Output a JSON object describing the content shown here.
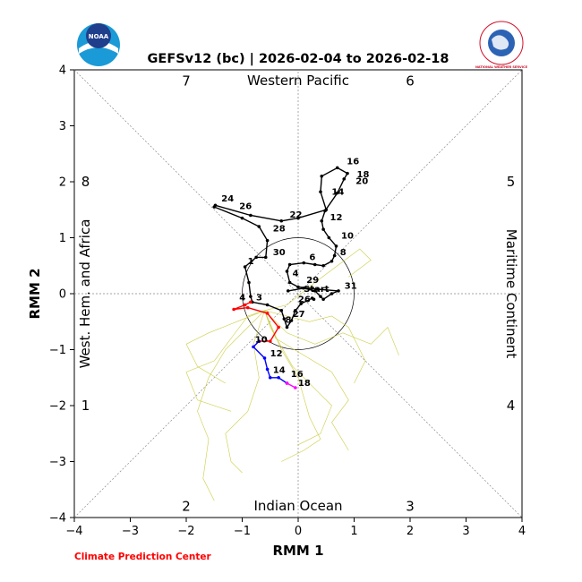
{
  "header": {
    "title": "GEFSv12 (bc) | 2026-02-04 to 2026-02-18"
  },
  "logos": {
    "left_logo_text": "NOAA",
    "right_logo_text": "NATIONAL WEATHER SERVICE"
  },
  "credit": "Climate Prediction Center",
  "colors": {
    "observed": "#000000",
    "forecast_week1": "#ff0000",
    "forecast_week2": "#0000ff",
    "forecast_week3": "#ff00ff",
    "ensemble_members": "#c8c832",
    "grid_diagonal": "#888888"
  },
  "chart_data": {
    "type": "line",
    "title": "GEFSv12 (bc) | 2026-02-04 to 2026-02-18",
    "xlabel": "RMM 1",
    "ylabel": "RMM 2",
    "xlim": [
      -4,
      4
    ],
    "ylim": [
      -4,
      4
    ],
    "xticks": [
      "−4",
      "−3",
      "−2",
      "−1",
      "0",
      "1",
      "2",
      "3",
      "4"
    ],
    "yticks": [
      "−4",
      "−3",
      "−2",
      "−1",
      "0",
      "1",
      "2",
      "3",
      "4"
    ],
    "unit_circle_radius": 1,
    "region_labels": {
      "top": "Western Pacific",
      "bottom": "Indian Ocean",
      "left": "West. Hem. and Africa",
      "right": "Maritime Continent"
    },
    "phase_numbers": [
      "1",
      "2",
      "3",
      "4",
      "5",
      "6",
      "7",
      "8"
    ],
    "series": [
      {
        "role": "observed",
        "color": "#000000",
        "points": [
          [
            -0.18,
            0.05
          ],
          [
            0.1,
            0.1
          ],
          [
            0.3,
            0.05
          ],
          [
            0.4,
            -0.05
          ],
          [
            0.45,
            -0.1
          ],
          [
            0.6,
            0.0
          ],
          [
            0.72,
            0.05
          ],
          [
            0.35,
            0.08
          ],
          [
            0.0,
            0.12
          ],
          [
            -0.15,
            0.2
          ],
          [
            -0.2,
            0.4
          ],
          [
            -0.15,
            0.52
          ],
          [
            0.1,
            0.55
          ],
          [
            0.3,
            0.52
          ],
          [
            0.45,
            0.5
          ],
          [
            0.6,
            0.58
          ],
          [
            0.65,
            0.68
          ],
          [
            0.68,
            0.85
          ],
          [
            0.55,
            1.0
          ],
          [
            0.45,
            1.15
          ],
          [
            0.42,
            1.3
          ],
          [
            0.48,
            1.48
          ],
          [
            0.7,
            1.8
          ],
          [
            0.82,
            2.05
          ],
          [
            0.88,
            2.15
          ],
          [
            0.7,
            2.25
          ],
          [
            0.42,
            2.1
          ],
          [
            0.4,
            1.82
          ],
          [
            0.5,
            1.5
          ],
          [
            0.0,
            1.35
          ],
          [
            -0.3,
            1.3
          ],
          [
            -0.85,
            1.4
          ],
          [
            -1.48,
            1.58
          ],
          [
            -1.5,
            1.55
          ],
          [
            -1.0,
            1.35
          ],
          [
            -0.7,
            1.2
          ],
          [
            -0.55,
            0.95
          ],
          [
            -0.58,
            0.65
          ],
          [
            -0.75,
            0.65
          ],
          [
            -0.95,
            0.48
          ],
          [
            -0.88,
            0.2
          ],
          [
            -0.85,
            -0.05
          ],
          [
            -0.82,
            -0.15
          ],
          [
            -0.55,
            -0.2
          ],
          [
            -0.3,
            -0.3
          ],
          [
            -0.25,
            -0.45
          ],
          [
            -0.2,
            -0.6
          ],
          [
            -0.12,
            -0.48
          ],
          [
            -0.05,
            -0.3
          ],
          [
            0.05,
            -0.18
          ],
          [
            0.25,
            -0.08
          ],
          [
            0.28,
            -0.1
          ]
        ],
        "labels": [
          {
            "text": "16",
            "x": 0.82,
            "y": 2.28
          },
          {
            "text": "18",
            "x": 1.0,
            "y": 2.05
          },
          {
            "text": "20",
            "x": 0.98,
            "y": 1.93
          },
          {
            "text": "14",
            "x": 0.55,
            "y": 1.74
          },
          {
            "text": "12",
            "x": 0.52,
            "y": 1.28
          },
          {
            "text": "10",
            "x": 0.72,
            "y": 0.95
          },
          {
            "text": "8",
            "x": 0.7,
            "y": 0.66
          },
          {
            "text": "6",
            "x": 0.15,
            "y": 0.57
          },
          {
            "text": "24",
            "x": -1.42,
            "y": 1.62
          },
          {
            "text": "26",
            "x": -1.1,
            "y": 1.48
          },
          {
            "text": "22",
            "x": -0.2,
            "y": 1.33
          },
          {
            "text": "28",
            "x": -0.5,
            "y": 1.08
          },
          {
            "text": "30",
            "x": -0.5,
            "y": 0.66
          },
          {
            "text": "1",
            "x": -0.95,
            "y": 0.5
          },
          {
            "text": "4",
            "x": -0.15,
            "y": 0.28
          },
          {
            "text": "29",
            "x": 0.1,
            "y": 0.16
          },
          {
            "text": "31",
            "x": 0.78,
            "y": 0.06
          },
          {
            "text": "Start",
            "x": 0.05,
            "y": 0.0
          },
          {
            "text": "26",
            "x": -0.05,
            "y": -0.18
          },
          {
            "text": "27",
            "x": -0.15,
            "y": -0.45
          }
        ]
      },
      {
        "role": "forecast-week-1",
        "color": "#ff0000",
        "points": [
          [
            -0.85,
            -0.15
          ],
          [
            -0.95,
            -0.2
          ],
          [
            -1.15,
            -0.28
          ],
          [
            -0.9,
            -0.25
          ],
          [
            -0.55,
            -0.35
          ],
          [
            -0.35,
            -0.6
          ],
          [
            -0.5,
            -0.85
          ],
          [
            -0.7,
            -0.85
          ]
        ],
        "labels": [
          {
            "text": "4",
            "x": -1.1,
            "y": -0.15
          },
          {
            "text": "3",
            "x": -0.8,
            "y": -0.15
          },
          {
            "text": "8",
            "x": -0.28,
            "y": -0.55
          }
        ]
      },
      {
        "role": "forecast-week-2",
        "color": "#0000ff",
        "points": [
          [
            -0.7,
            -0.85
          ],
          [
            -0.8,
            -0.95
          ],
          [
            -0.6,
            -1.15
          ],
          [
            -0.55,
            -1.35
          ],
          [
            -0.5,
            -1.5
          ],
          [
            -0.35,
            -1.5
          ],
          [
            -0.2,
            -1.6
          ]
        ],
        "labels": [
          {
            "text": "10",
            "x": -0.82,
            "y": -0.9
          },
          {
            "text": "12",
            "x": -0.55,
            "y": -1.15
          },
          {
            "text": "14",
            "x": -0.5,
            "y": -1.45
          },
          {
            "text": "16",
            "x": -0.18,
            "y": -1.52
          }
        ]
      },
      {
        "role": "forecast-week-3",
        "color": "#ff00ff",
        "points": [
          [
            -0.2,
            -1.6
          ],
          [
            -0.05,
            -1.68
          ]
        ],
        "labels": [
          {
            "text": "18",
            "x": -0.05,
            "y": -1.68
          }
        ]
      }
    ],
    "ensemble_members": [
      [
        [
          -0.6,
          -0.3
        ],
        [
          -0.9,
          -0.6
        ],
        [
          -1.3,
          -1.0
        ],
        [
          -1.6,
          -1.5
        ],
        [
          -1.8,
          -2.1
        ],
        [
          -1.6,
          -2.6
        ],
        [
          -1.7,
          -3.3
        ],
        [
          -1.5,
          -3.7
        ]
      ],
      [
        [
          -0.6,
          -0.3
        ],
        [
          -0.4,
          -0.8
        ],
        [
          0.1,
          -1.1
        ],
        [
          0.6,
          -1.4
        ],
        [
          0.9,
          -1.9
        ],
        [
          0.6,
          -2.3
        ],
        [
          0.9,
          -2.8
        ]
      ],
      [
        [
          -0.6,
          -0.3
        ],
        [
          -0.2,
          -0.7
        ],
        [
          0.3,
          -0.9
        ],
        [
          0.8,
          -0.7
        ],
        [
          1.3,
          -0.9
        ],
        [
          1.6,
          -0.6
        ],
        [
          1.8,
          -1.1
        ]
      ],
      [
        [
          -0.6,
          -0.3
        ],
        [
          -0.9,
          -0.4
        ],
        [
          -1.2,
          -0.8
        ],
        [
          -1.5,
          -1.2
        ],
        [
          -2.0,
          -1.4
        ],
        [
          -1.8,
          -1.9
        ],
        [
          -1.2,
          -2.1
        ]
      ],
      [
        [
          -0.6,
          -0.3
        ],
        [
          -0.3,
          -1.0
        ],
        [
          0.0,
          -1.5
        ],
        [
          0.2,
          -2.2
        ],
        [
          0.4,
          -2.6
        ],
        [
          0.1,
          -2.8
        ],
        [
          -0.3,
          -3.0
        ]
      ],
      [
        [
          -0.6,
          -0.3
        ],
        [
          -0.2,
          -0.2
        ],
        [
          0.3,
          0.2
        ],
        [
          0.7,
          0.5
        ],
        [
          1.1,
          0.8
        ],
        [
          1.3,
          0.6
        ],
        [
          0.9,
          0.3
        ]
      ],
      [
        [
          -0.6,
          -0.3
        ],
        [
          -0.8,
          -0.9
        ],
        [
          -0.7,
          -1.5
        ],
        [
          -0.9,
          -2.1
        ],
        [
          -1.3,
          -2.5
        ],
        [
          -1.2,
          -3.0
        ],
        [
          -1.0,
          -3.2
        ]
      ],
      [
        [
          -0.6,
          -0.3
        ],
        [
          -0.5,
          -0.6
        ],
        [
          -0.1,
          -1.3
        ],
        [
          0.3,
          -1.7
        ],
        [
          0.6,
          -2.0
        ],
        [
          0.4,
          -2.5
        ],
        [
          0.0,
          -2.7
        ]
      ],
      [
        [
          -0.6,
          -0.3
        ],
        [
          -1.1,
          -0.5
        ],
        [
          -1.6,
          -0.7
        ],
        [
          -2.0,
          -0.9
        ],
        [
          -1.8,
          -1.3
        ],
        [
          -1.3,
          -1.6
        ]
      ],
      [
        [
          -0.6,
          -0.3
        ],
        [
          -0.2,
          -0.4
        ],
        [
          0.2,
          -0.5
        ],
        [
          0.6,
          -0.4
        ],
        [
          0.9,
          -0.6
        ],
        [
          1.2,
          -1.2
        ],
        [
          1.0,
          -1.6
        ]
      ]
    ]
  }
}
